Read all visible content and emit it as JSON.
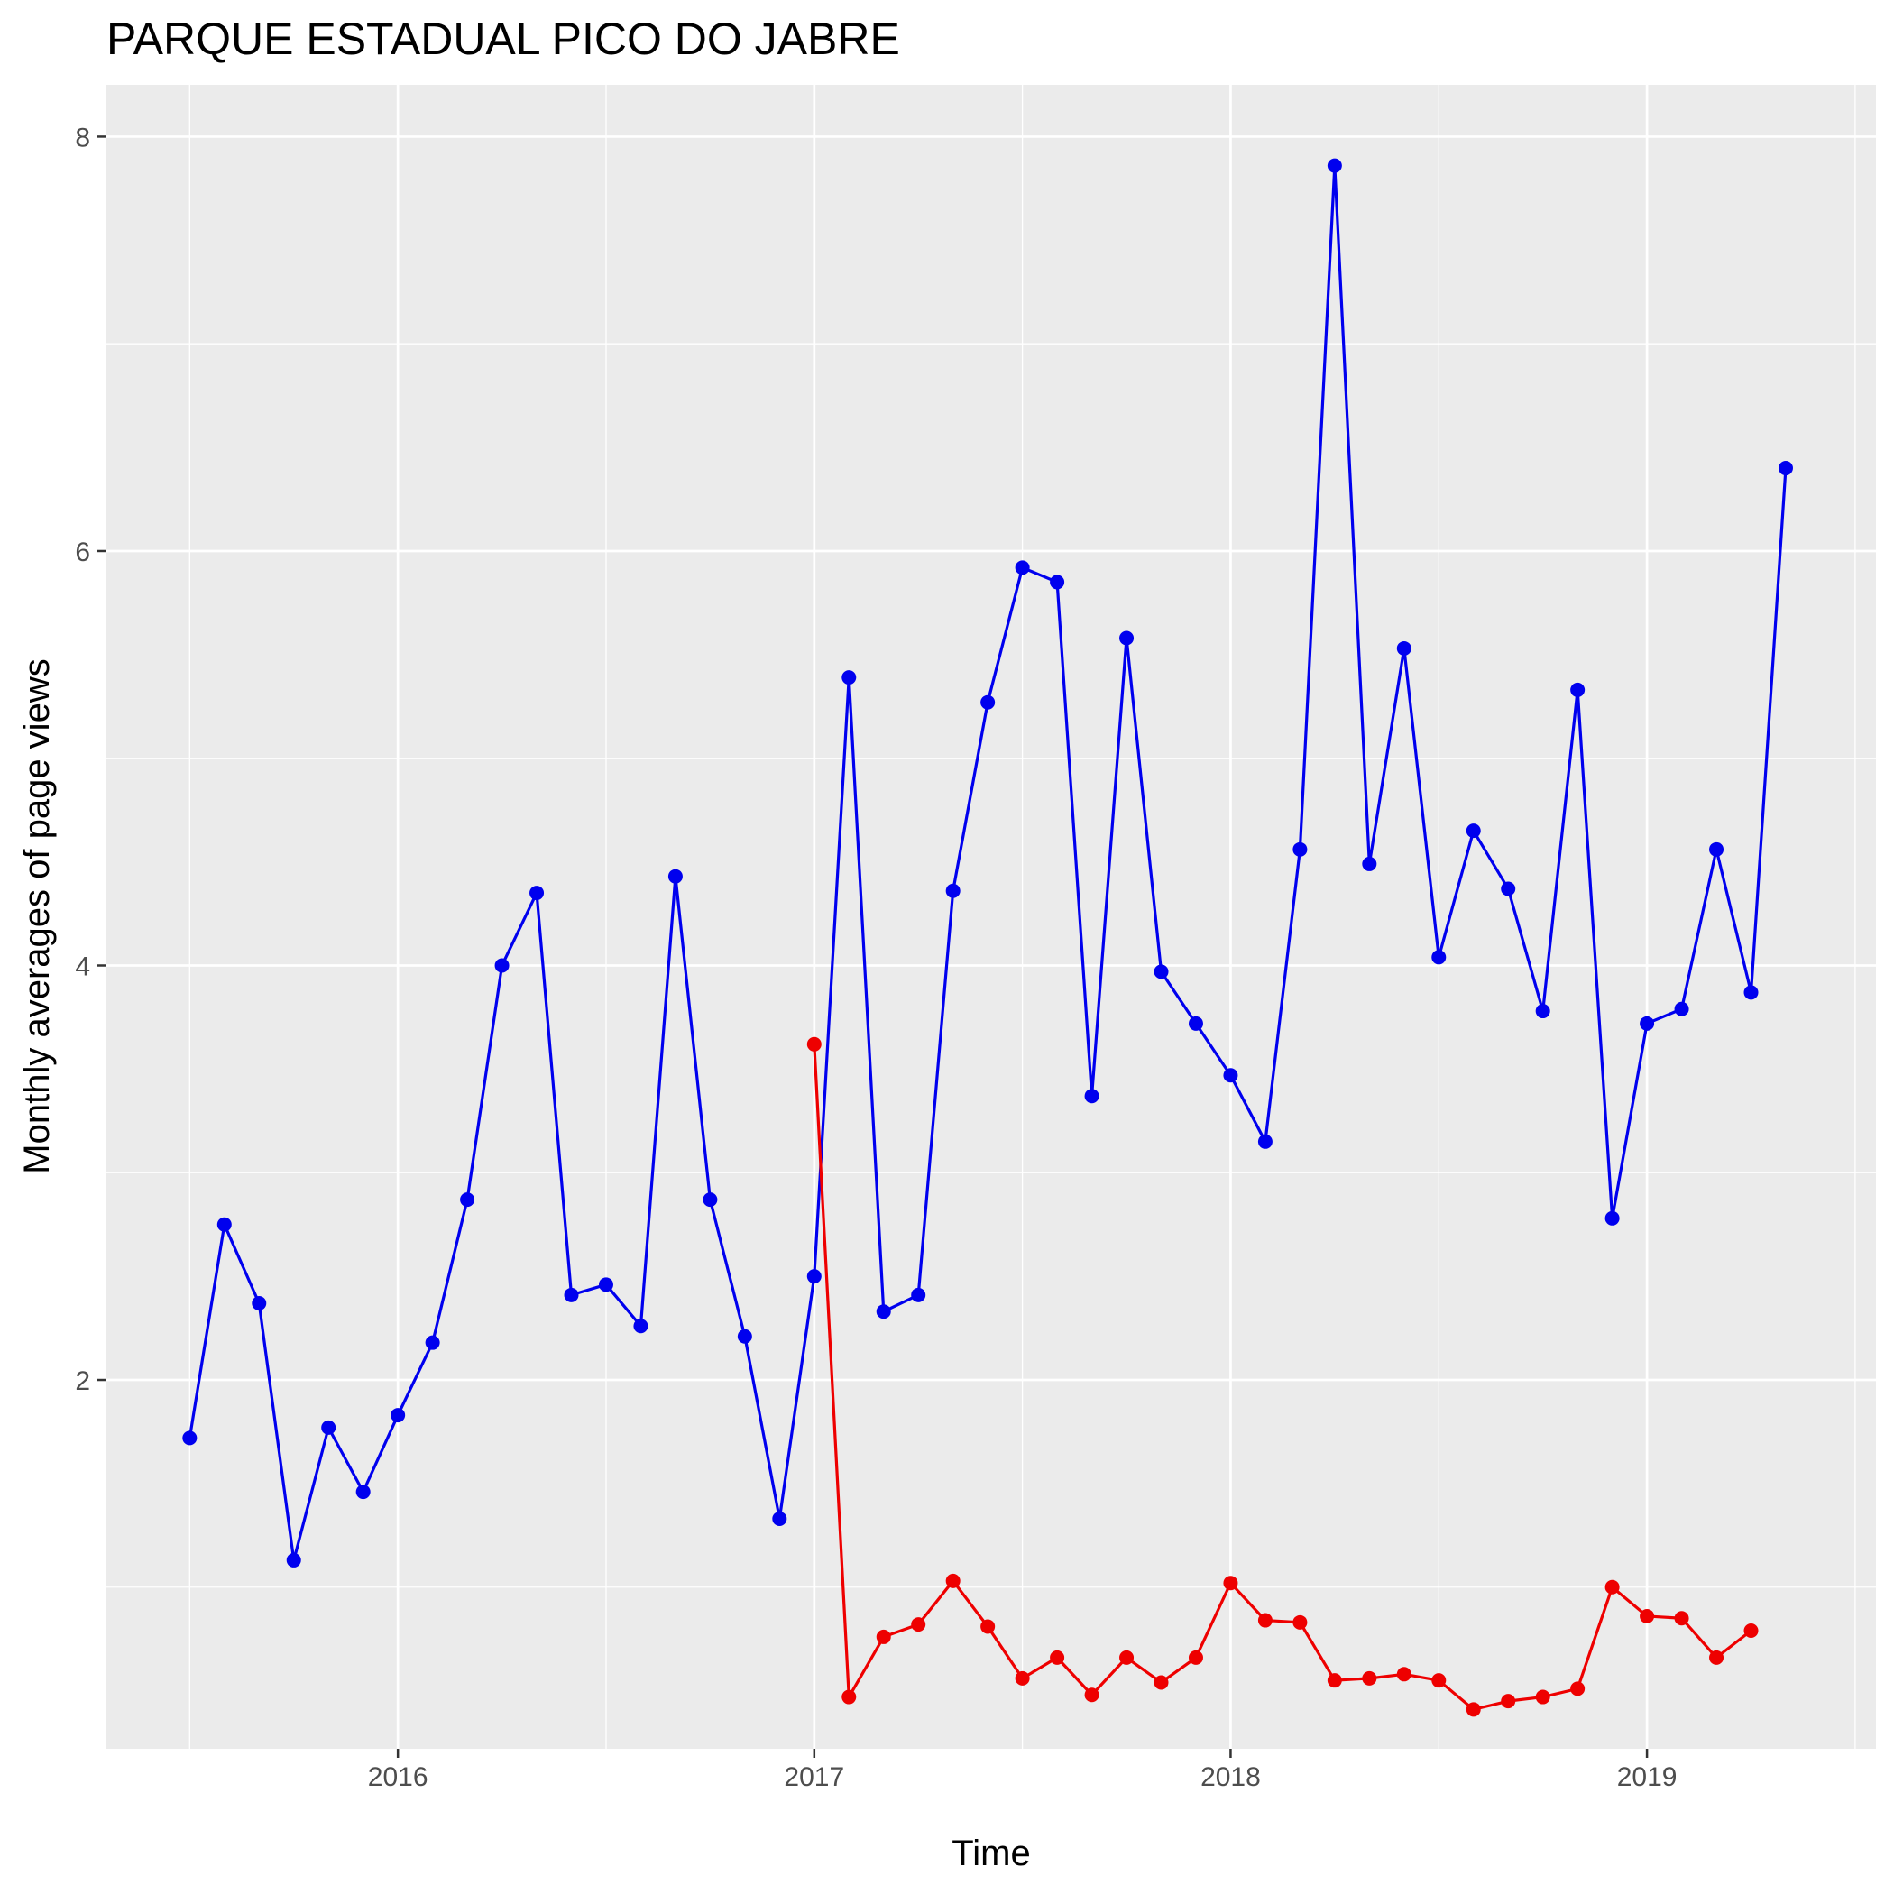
{
  "chart_data": {
    "type": "line",
    "title": "PARQUE ESTADUAL PICO DO JABRE",
    "xlabel": "Time",
    "ylabel": "Monthly averages of page views",
    "x_ticks": [
      "2016",
      "2017",
      "2018",
      "2019"
    ],
    "y_ticks": [
      "2",
      "4",
      "6",
      "8"
    ],
    "xlim": [
      2015.3,
      2019.55
    ],
    "ylim": [
      0.22,
      8.25
    ],
    "grid": true,
    "legend": "none",
    "series": [
      {
        "color": "#0000ee",
        "x": [
          "2015-07",
          "2015-08",
          "2015-09",
          "2015-10",
          "2015-11",
          "2015-12",
          "2016-01",
          "2016-02",
          "2016-03",
          "2016-04",
          "2016-05",
          "2016-06",
          "2016-07",
          "2016-08",
          "2016-09",
          "2016-10",
          "2016-11",
          "2016-12",
          "2017-01",
          "2017-02",
          "2017-03",
          "2017-04",
          "2017-05",
          "2017-06",
          "2017-07",
          "2017-08",
          "2017-09",
          "2017-10",
          "2017-11",
          "2017-12",
          "2018-01",
          "2018-02",
          "2018-03",
          "2018-04",
          "2018-05",
          "2018-06",
          "2018-07",
          "2018-08",
          "2018-09",
          "2018-10",
          "2018-11",
          "2018-12",
          "2019-01",
          "2019-02",
          "2019-03",
          "2019-04",
          "2019-05"
        ],
        "values": [
          1.72,
          2.75,
          2.37,
          1.13,
          1.77,
          1.46,
          1.83,
          2.18,
          2.87,
          4.0,
          4.35,
          2.41,
          2.46,
          2.26,
          4.43,
          2.87,
          2.21,
          1.33,
          2.5,
          5.39,
          2.33,
          2.41,
          4.36,
          5.27,
          5.92,
          5.85,
          3.37,
          5.58,
          3.97,
          3.72,
          3.47,
          3.15,
          4.56,
          7.86,
          4.49,
          5.53,
          4.04,
          4.65,
          4.37,
          3.78,
          5.33,
          2.78,
          3.72,
          3.79,
          4.56,
          3.87,
          6.4
        ]
      },
      {
        "color": "#ee0000",
        "x": [
          "2017-01",
          "2017-02",
          "2017-03",
          "2017-04",
          "2017-05",
          "2017-06",
          "2017-07",
          "2017-08",
          "2017-09",
          "2017-10",
          "2017-11",
          "2017-12",
          "2018-01",
          "2018-02",
          "2018-03",
          "2018-04",
          "2018-05",
          "2018-06",
          "2018-07",
          "2018-08",
          "2018-09",
          "2018-10",
          "2018-11",
          "2018-12",
          "2019-01",
          "2019-02",
          "2019-03",
          "2019-04"
        ],
        "values": [
          3.62,
          0.47,
          0.76,
          0.82,
          1.03,
          0.81,
          0.56,
          0.66,
          0.48,
          0.66,
          0.54,
          0.66,
          1.02,
          0.84,
          0.83,
          0.55,
          0.56,
          0.58,
          0.55,
          0.41,
          0.45,
          0.47,
          0.51,
          1.0,
          0.86,
          0.85,
          0.66,
          0.79
        ]
      }
    ]
  }
}
